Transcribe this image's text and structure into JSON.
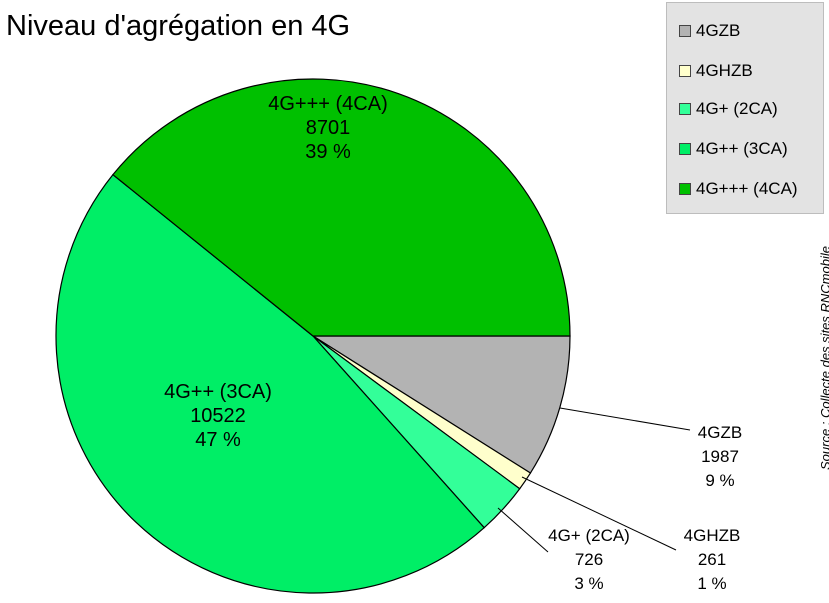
{
  "title": "Niveau d'agrégation en 4G",
  "source": "Source : Collecte des sites RNCmobile",
  "legend": [
    "4GZB",
    "4GHZB",
    "4G+ (2CA)",
    "4G++ (3CA)",
    "4G+++ (4CA)"
  ],
  "chart_data": {
    "type": "pie",
    "title": "Niveau d'agrégation en 4G",
    "slices": [
      {
        "label": "4GZB",
        "value": 1987,
        "percent": "9 %",
        "color": "#b3b3b3"
      },
      {
        "label": "4GHZB",
        "value": 261,
        "percent": "1 %",
        "color": "#ffffcc"
      },
      {
        "label": "4G+ (2CA)",
        "value": 726,
        "percent": "3 %",
        "color": "#33ff99"
      },
      {
        "label": "4G++ (3CA)",
        "value": 10522,
        "percent": "47 %",
        "color": "#00ee66"
      },
      {
        "label": "4G+++ (4CA)",
        "value": 8701,
        "percent": "39 %",
        "color": "#00c000"
      }
    ],
    "legend_position": "top-right"
  }
}
